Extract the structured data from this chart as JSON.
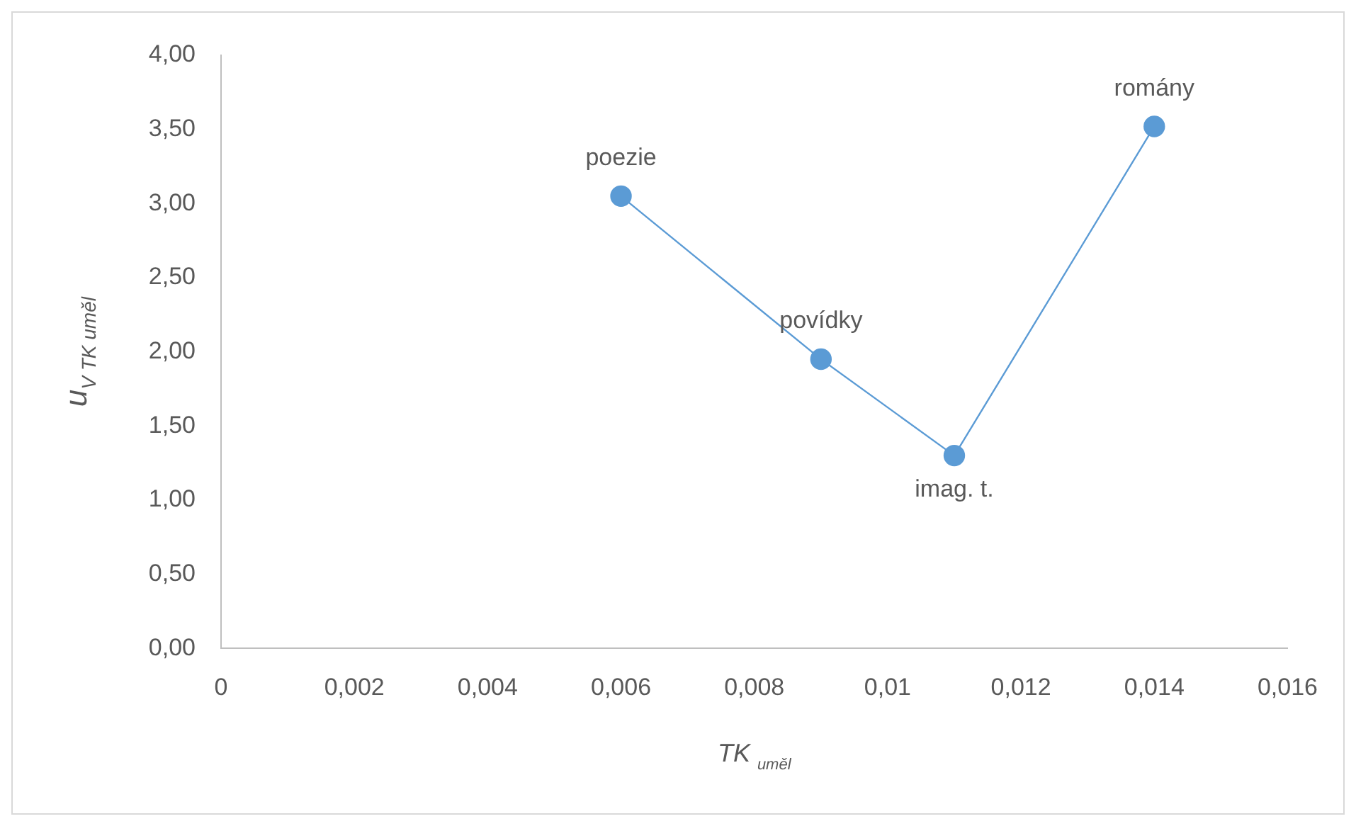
{
  "chart_data": {
    "type": "line",
    "xlabel": "TK $_{uměl}$",
    "ylabel": "u$_{V TK uměl}$",
    "x": [
      0.006,
      0.009,
      0.011,
      0.014
    ],
    "series": [
      {
        "color": "#5b9bd5",
        "values": [
          3.05,
          1.95,
          1.3,
          3.52
        ]
      }
    ],
    "xlim": [
      0,
      0.016
    ],
    "xticks": [
      0,
      {
        "value": 0.002,
        "label": "0,002"
      },
      {
        "value": 0.004,
        "label": "0,004"
      },
      {
        "value": 0.006,
        "label": "0,006"
      },
      {
        "value": 0.008,
        "label": "0,008"
      },
      {
        "value": 0.01,
        "label": "0,01"
      },
      {
        "value": 0.012,
        "label": "0,012"
      },
      {
        "value": 0.014,
        "label": "0,014"
      },
      {
        "value": 0.016,
        "label": "0,016"
      }
    ],
    "ylim": [
      0,
      4
    ],
    "yticks": [
      {
        "value": 0,
        "label": "0,00"
      },
      {
        "value": 0.5,
        "label": "0,50"
      },
      {
        "value": 1,
        "label": "1,00"
      },
      {
        "value": 1.5,
        "label": "1,50"
      },
      {
        "value": 2,
        "label": "2,00"
      },
      {
        "value": 2.5,
        "label": "2,50"
      },
      {
        "value": 3,
        "label": "3,00"
      },
      {
        "value": 3.5,
        "label": "3,50"
      },
      {
        "value": 4,
        "label": "4,00"
      }
    ],
    "annotations": [
      {
        "text": "poezie",
        "x": 0.006,
        "y": 3.05
      },
      {
        "text": "povídky",
        "x": 0.009,
        "y": 1.95
      },
      {
        "text": "imag. t.",
        "x": 0.011,
        "y": 1.3
      },
      {
        "text": "romány",
        "x": 0.014,
        "y": 3.52
      }
    ],
    "grid": false,
    "legend": false,
    "marker": "circle",
    "line_style": "solid"
  }
}
